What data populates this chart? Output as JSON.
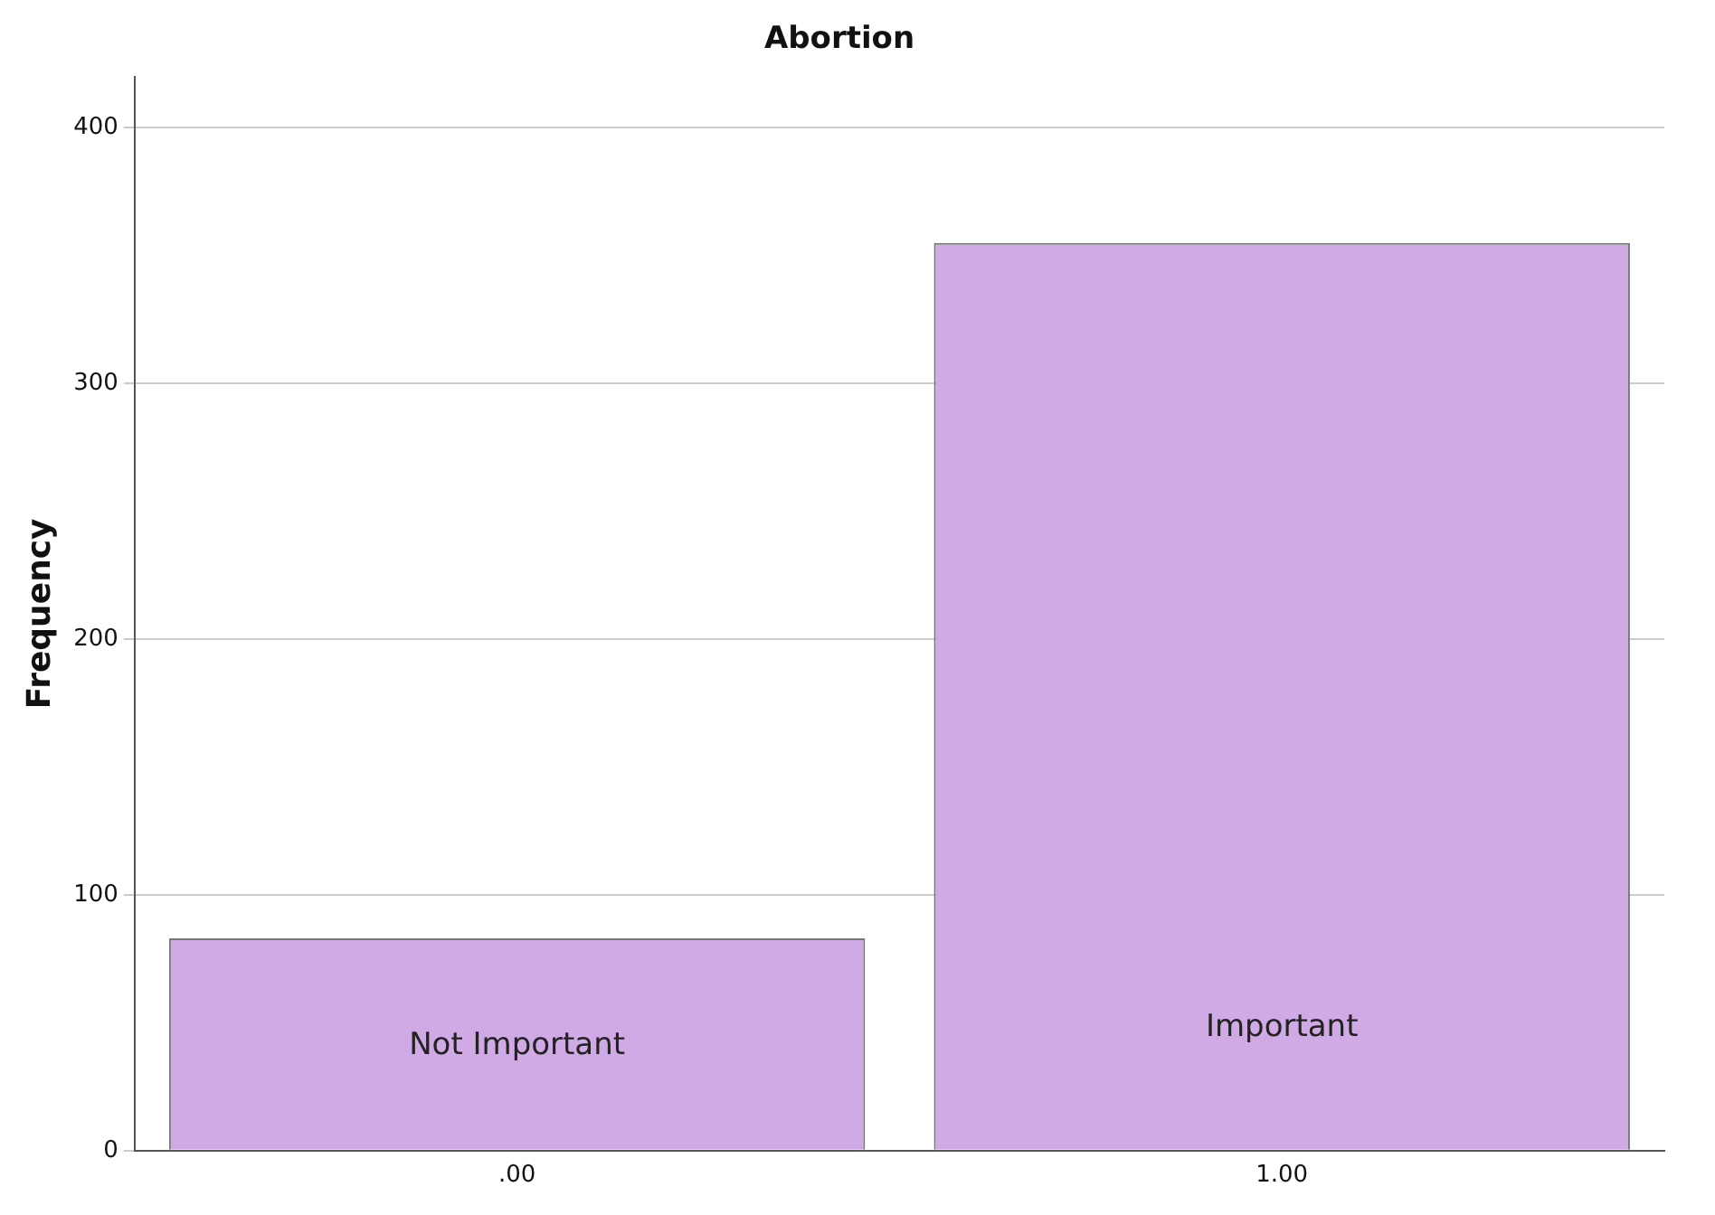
{
  "chart_data": {
    "type": "bar",
    "title": "Abortion",
    "ylabel": "Frequency",
    "categories": [
      ".00",
      "1.00"
    ],
    "values": [
      83,
      355
    ],
    "color": "#d0aae4",
    "ylim": [
      0,
      420
    ],
    "yticks": [
      0,
      100,
      200,
      300,
      400
    ],
    "grid": "y",
    "legend": false,
    "annotations": [
      "Not Important",
      "Important"
    ]
  }
}
